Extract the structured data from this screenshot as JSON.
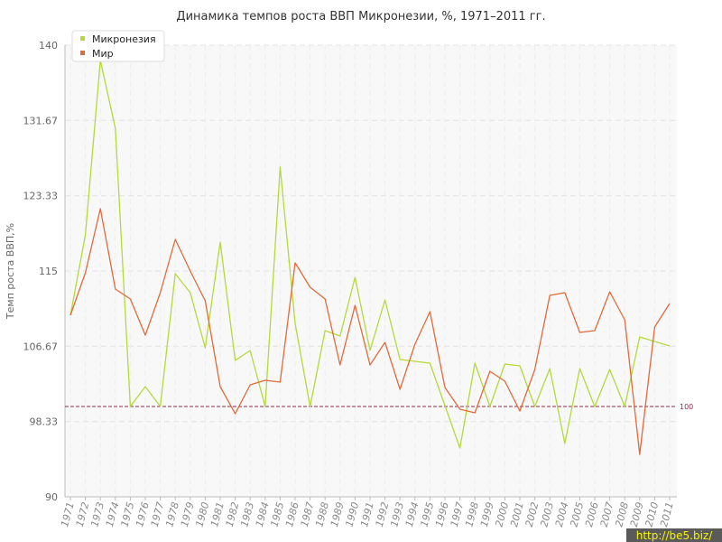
{
  "chart_data": {
    "type": "line",
    "title": "Динамика темпов роста ВВП Микронезии, %, 1971–2011 гг.",
    "ylabel": "Темп роста ВВП,%",
    "xlabel": "",
    "ylim": [
      90,
      140
    ],
    "yticks": [
      "140",
      "131.67",
      "123.33",
      "115",
      "106.67",
      "98.33",
      "90"
    ],
    "x": [
      "1971",
      "1972",
      "1973",
      "1974",
      "1975",
      "1976",
      "1977",
      "1978",
      "1979",
      "1980",
      "1981",
      "1982",
      "1983",
      "1984",
      "1985",
      "1986",
      "1987",
      "1988",
      "1989",
      "1990",
      "1991",
      "1992",
      "1993",
      "1994",
      "1995",
      "1996",
      "1997",
      "1998",
      "1999",
      "2000",
      "2001",
      "2002",
      "2003",
      "2004",
      "2005",
      "2006",
      "2007",
      "2008",
      "2009",
      "2010",
      "2011"
    ],
    "series": [
      {
        "name": "Микронезия",
        "color": "#b5d93a",
        "values": [
          110.1,
          119.0,
          138.3,
          130.8,
          100.0,
          102.2,
          100.0,
          114.7,
          112.6,
          106.5,
          118.2,
          105.1,
          106.2,
          100.0,
          126.5,
          109.2,
          100.0,
          108.4,
          107.8,
          114.3,
          106.2,
          111.8,
          105.2,
          105.0,
          104.8,
          100.1,
          95.4,
          104.8,
          100.0,
          104.7,
          104.5,
          100.0,
          104.2,
          95.9,
          104.2,
          100.0,
          104.1,
          100.0,
          107.7,
          107.2,
          106.7
        ]
      },
      {
        "name": "Мир",
        "color": "#e06b3a",
        "values": [
          110.1,
          114.8,
          121.9,
          113.0,
          111.9,
          107.9,
          112.6,
          118.5,
          115.0,
          111.7,
          102.2,
          99.2,
          102.4,
          102.9,
          102.7,
          115.9,
          113.2,
          111.9,
          104.6,
          111.2,
          104.6,
          107.1,
          101.9,
          106.9,
          110.5,
          102.1,
          99.7,
          99.3,
          103.9,
          102.8,
          99.5,
          104.1,
          112.3,
          112.6,
          108.2,
          108.4,
          112.7,
          109.6,
          94.7,
          108.8,
          111.4
        ]
      }
    ],
    "reference_line": {
      "value": 100,
      "label": "100",
      "color": "#8e2b4a"
    },
    "grid": true,
    "legend": "top-left"
  },
  "watermark": "http://be5.biz/"
}
